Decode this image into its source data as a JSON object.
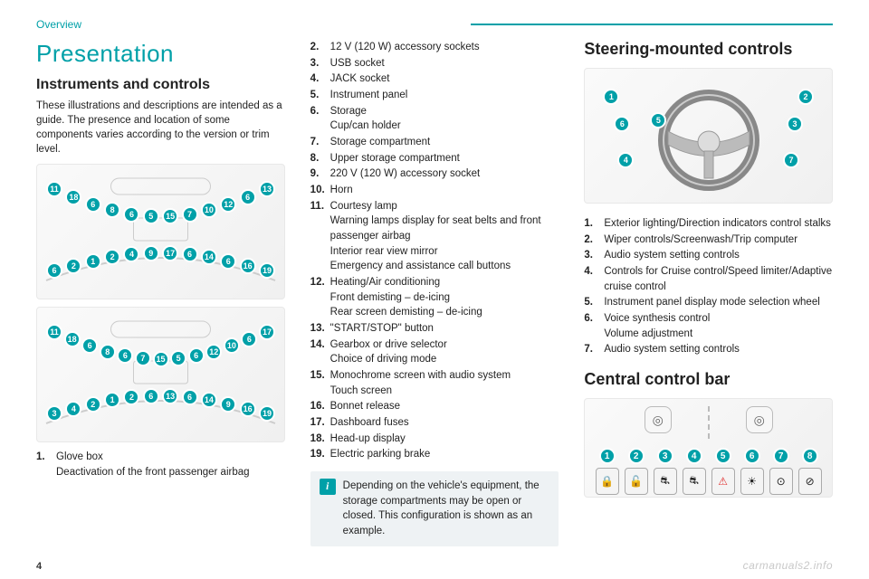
{
  "accent_color": "#00a0a8",
  "header": {
    "overview": "Overview"
  },
  "page_number": "4",
  "watermark": "carmanuals2.info",
  "col1": {
    "title": "Presentation",
    "subtitle": "Instruments and controls",
    "intro": "These illustrations and descriptions are intended as a guide. The presence and location of some components varies according to the version or trim level.",
    "diagram_a_dots": [
      "11",
      "18",
      "6",
      "8",
      "6",
      "5",
      "15",
      "7",
      "10",
      "12",
      "6",
      "13",
      "6",
      "2",
      "1",
      "2",
      "4",
      "9",
      "17",
      "6",
      "14",
      "6",
      "16",
      "19"
    ],
    "diagram_b_dots": [
      "11",
      "18",
      "6",
      "8",
      "6",
      "7",
      "15",
      "5",
      "6",
      "12",
      "10",
      "6",
      "17",
      "3",
      "4",
      "2",
      "1",
      "2",
      "6",
      "13",
      "6",
      "14",
      "9",
      "16",
      "19"
    ],
    "below_items": [
      {
        "n": "1.",
        "t": "Glove box\nDeactivation of the front passenger airbag"
      }
    ]
  },
  "col2": {
    "items": [
      {
        "n": "2.",
        "t": "12 V (120 W) accessory sockets"
      },
      {
        "n": "3.",
        "t": "USB socket"
      },
      {
        "n": "4.",
        "t": "JACK socket"
      },
      {
        "n": "5.",
        "t": "Instrument panel"
      },
      {
        "n": "6.",
        "t": "Storage\nCup/can holder"
      },
      {
        "n": "7.",
        "t": "Storage compartment"
      },
      {
        "n": "8.",
        "t": "Upper storage compartment"
      },
      {
        "n": "9.",
        "t": "220 V (120 W) accessory socket"
      },
      {
        "n": "10.",
        "t": "Horn"
      },
      {
        "n": "11.",
        "t": "Courtesy lamp\nWarning lamps display for seat belts and front passenger airbag\nInterior rear view mirror\nEmergency and assistance call buttons"
      },
      {
        "n": "12.",
        "t": "Heating/Air conditioning\nFront demisting – de-icing\nRear screen demisting – de-icing"
      },
      {
        "n": "13.",
        "t": "\"START/STOP\" button"
      },
      {
        "n": "14.",
        "t": "Gearbox or drive selector\nChoice of driving mode"
      },
      {
        "n": "15.",
        "t": "Monochrome screen with audio system\nTouch screen"
      },
      {
        "n": "16.",
        "t": "Bonnet release"
      },
      {
        "n": "17.",
        "t": "Dashboard fuses"
      },
      {
        "n": "18.",
        "t": "Head-up display"
      },
      {
        "n": "19.",
        "t": "Electric parking brake"
      }
    ],
    "info_text": "Depending on the vehicle's equipment, the storage compartments may be open or closed. This configuration is shown as an example."
  },
  "col3": {
    "steering_title": "Steering-mounted controls",
    "wheel_dots": [
      "1",
      "2",
      "5",
      "6",
      "3",
      "4",
      "7"
    ],
    "steering_items": [
      {
        "n": "1.",
        "t": "Exterior lighting/Direction indicators control stalks"
      },
      {
        "n": "2.",
        "t": "Wiper controls/Screenwash/Trip computer"
      },
      {
        "n": "3.",
        "t": "Audio system setting controls"
      },
      {
        "n": "4.",
        "t": "Controls for Cruise control/Speed limiter/Adaptive cruise control"
      },
      {
        "n": "5.",
        "t": "Instrument panel display mode selection wheel"
      },
      {
        "n": "6.",
        "t": "Voice synthesis control\nVolume adjustment"
      },
      {
        "n": "7.",
        "t": "Audio system setting controls"
      }
    ],
    "central_title": "Central control bar",
    "bar_numbers": [
      "1",
      "2",
      "3",
      "4",
      "5",
      "6",
      "7",
      "8"
    ],
    "bar_glyphs": [
      "🔒",
      "🔓",
      "⛐",
      "⛐",
      "⚠",
      "☀",
      "⊙",
      "⊘"
    ]
  }
}
